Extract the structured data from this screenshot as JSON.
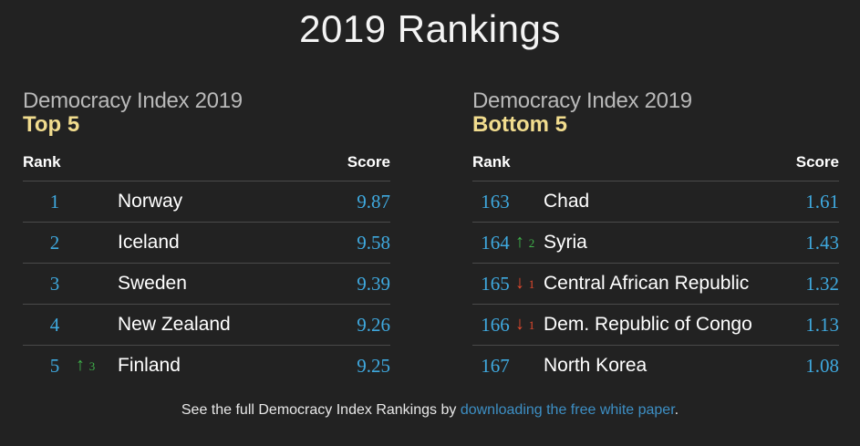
{
  "page_title": "2019 Rankings",
  "top": {
    "heading": "Democracy Index 2019",
    "subheading": "Top 5",
    "rank_label": "Rank",
    "score_label": "Score",
    "rows": [
      {
        "rank": "1",
        "change_dir": "",
        "change_arrow": "",
        "change_amount": "",
        "country": "Norway",
        "score": "9.87"
      },
      {
        "rank": "2",
        "change_dir": "",
        "change_arrow": "",
        "change_amount": "",
        "country": "Iceland",
        "score": "9.58"
      },
      {
        "rank": "3",
        "change_dir": "",
        "change_arrow": "",
        "change_amount": "",
        "country": "Sweden",
        "score": "9.39"
      },
      {
        "rank": "4",
        "change_dir": "",
        "change_arrow": "",
        "change_amount": "",
        "country": "New Zealand",
        "score": "9.26"
      },
      {
        "rank": "5",
        "change_dir": "up",
        "change_arrow": "↑",
        "change_amount": "3",
        "country": "Finland",
        "score": "9.25"
      }
    ]
  },
  "bottom": {
    "heading": "Democracy Index 2019",
    "subheading": "Bottom 5",
    "rank_label": "Rank",
    "score_label": "Score",
    "rows": [
      {
        "rank": "163",
        "change_dir": "",
        "change_arrow": "",
        "change_amount": "",
        "country": "Chad",
        "score": "1.61"
      },
      {
        "rank": "164",
        "change_dir": "up",
        "change_arrow": "↑",
        "change_amount": "2",
        "country": "Syria",
        "score": "1.43"
      },
      {
        "rank": "165",
        "change_dir": "down",
        "change_arrow": "↓",
        "change_amount": "1",
        "country": "Central African Republic",
        "score": "1.32"
      },
      {
        "rank": "166",
        "change_dir": "down",
        "change_arrow": "↓",
        "change_amount": "1",
        "country": "Dem. Republic of Congo",
        "score": "1.13"
      },
      {
        "rank": "167",
        "change_dir": "",
        "change_arrow": "",
        "change_amount": "",
        "country": "North Korea",
        "score": "1.08"
      }
    ]
  },
  "footer": {
    "text_before": "See the full Democracy Index Rankings by ",
    "link_text": "downloading the free white paper",
    "text_after": "."
  },
  "colors": {
    "background": "#222222",
    "accent_blue": "#3fa9df",
    "subheading_gold": "#f1dc8e",
    "up_green": "#3fb24a",
    "down_red": "#e44a2e",
    "link_blue": "#3d8fc4"
  }
}
